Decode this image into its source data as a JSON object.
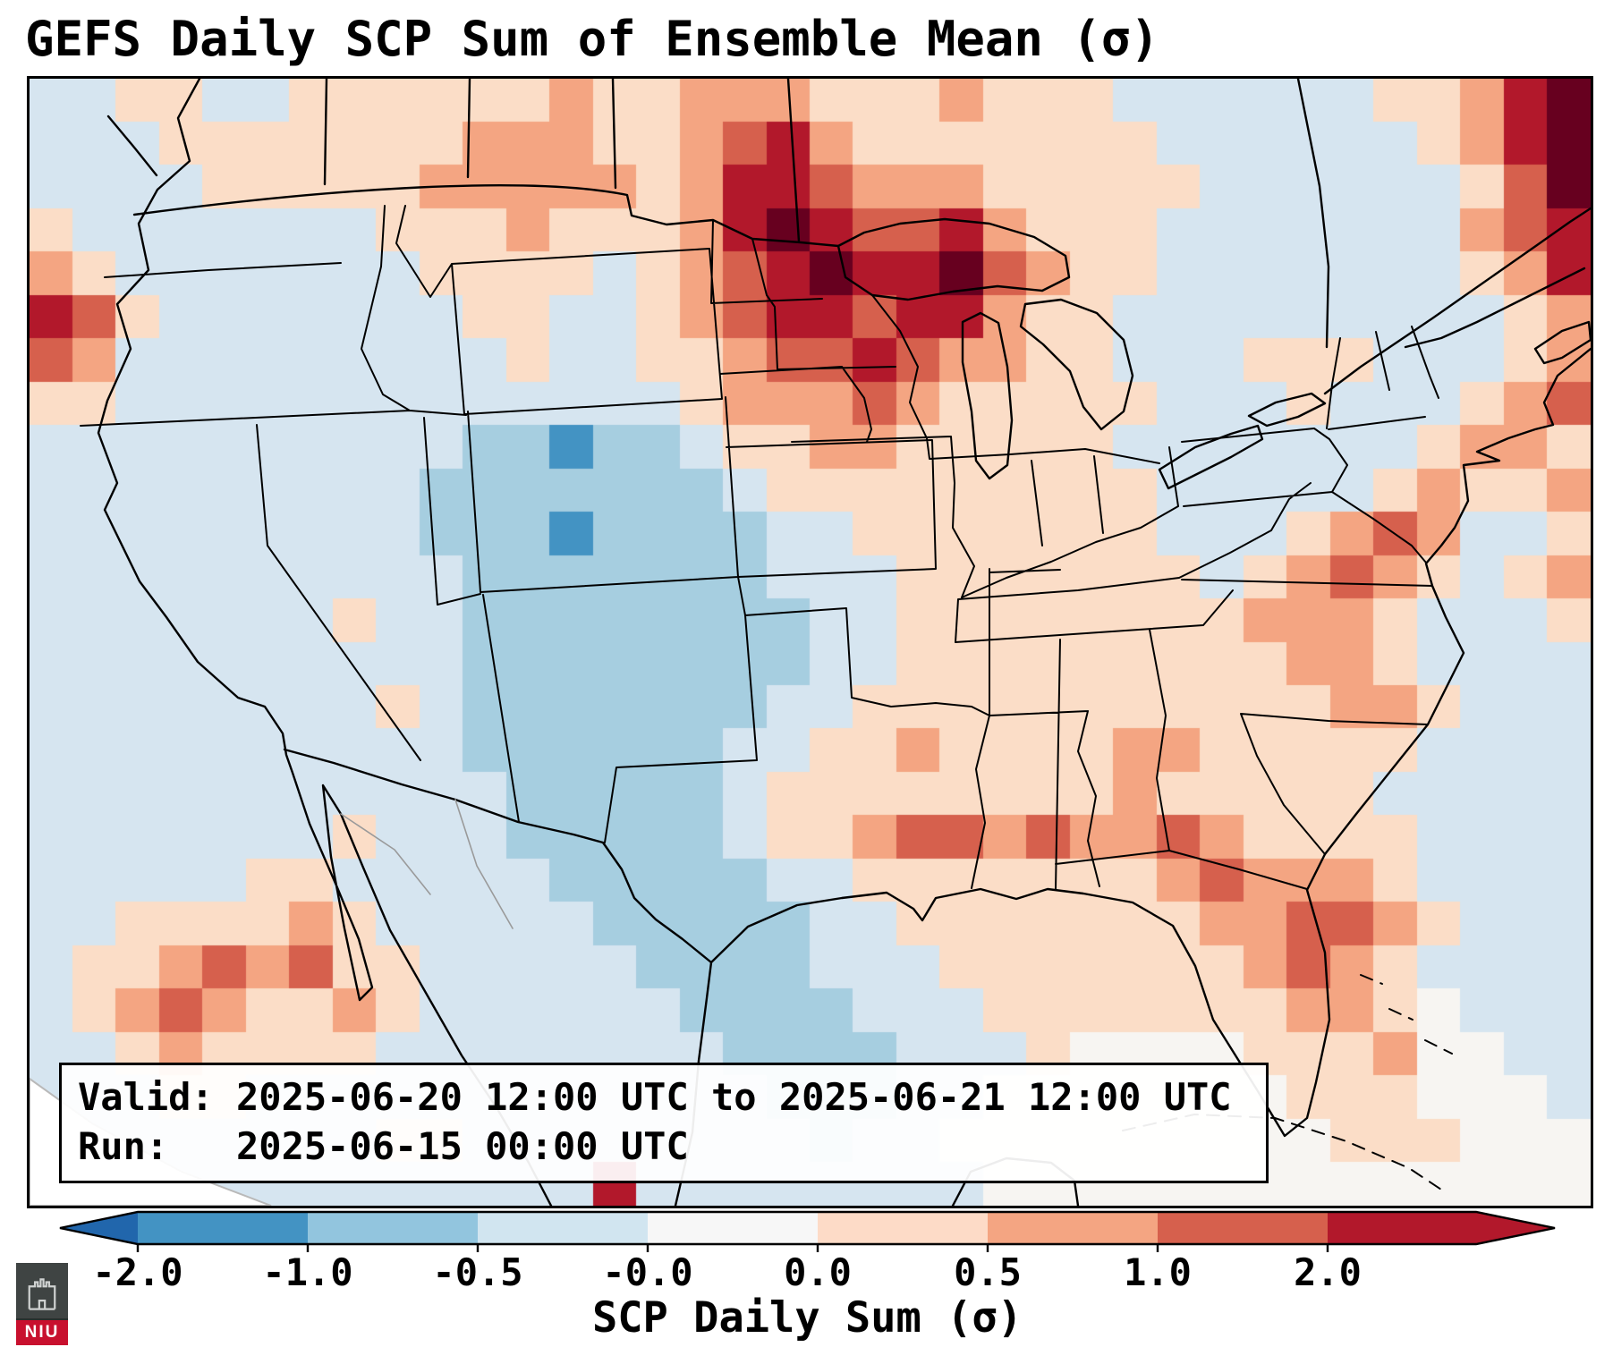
{
  "title": "GEFS Daily SCP Sum of Ensemble Mean (σ)",
  "info_box": {
    "valid_line": "Valid: 2025-06-20 12:00 UTC to 2025-06-21 12:00 UTC",
    "run_line": "Run:   2025-06-15 00:00 UTC"
  },
  "colorbar": {
    "label": "SCP Daily Sum (σ)",
    "ticks": [
      "-2.0",
      "-1.0",
      "-0.5",
      "-0.0",
      "0.0",
      "0.5",
      "1.0",
      "2.0"
    ],
    "segment_colors": [
      "#4393c3",
      "#92c5de",
      "#d1e5f0",
      "#f7f7f7",
      "#fddbc7",
      "#f4a582",
      "#d6604d"
    ],
    "extend_low_color": "#2166ac",
    "extend_high_color": "#b2182b"
  },
  "logo": {
    "text": "NIU"
  },
  "chart_data": {
    "type": "heatmap",
    "title": "GEFS Daily SCP Sum of Ensemble Mean (σ)",
    "units": "σ (standard deviations)",
    "colormap": "RdBu_r, diverging blue-white-red, extend both",
    "region": "Continental United States with surrounding Canada, Mexico, Gulf of Mexico and Atlantic",
    "valid": "2025-06-20 12:00 UTC to 2025-06-21 12:00 UTC",
    "run": "2025-06-15 00:00 UTC",
    "value_bins": {
      "0": "< -2.0",
      "1": "-2.0 to -1.0",
      "2": "-1.0 to -0.5",
      "3": "-0.5 to -0.0",
      "4": "near 0.0",
      "5": "0.0 to 0.5",
      "6": "0.5 to 1.0",
      "7": "1.0 to 2.0",
      "8": "> 2.0",
      "9": "> 2.0 (extreme core)"
    },
    "palette": {
      "0": "#2166ac",
      "1": "#4393c3",
      "2": "#a6cee0",
      "3": "#d6e5f0",
      "4": "#f7f5f2",
      "5": "#fbddc7",
      "6": "#f4a582",
      "7": "#d6604d",
      "8": "#b2182b",
      "9": "#67001f"
    },
    "grid_note": "26 rows x 36 cols, row 0 = north/top, each char is one grid cell bin",
    "rows": [
      "335533555555655666555655533333355689",
      "333555555566655678655555553333335689",
      "333355555666665688766655555333333579",
      "533333335556555689877865553333333678",
      "653333333555535678988976553333333568",
      "875333333355335678878865533333333356",
      "763333333335335567787665533355533356",
      "553333333333333566676555553335333567",
      "333333333322122355665555533333335665",
      "333333333222222235555555553333356556",
      "333333333222122223355555553335676335",
      "333333333322222223335555555356765356",
      "333333353322222222335555555566653335",
      "333333333322222222335555555556653333",
      "333333335322222223355555555555665333",
      "333333333322222233556555566555553333",
      "333333333332222235555555565555533333",
      "333333353332222235567767667655553333",
      "333335533333222223355555556766653333",
      "335555653333322222335555555667765333",
      "355676755333332222333555555567653333",
      "356765565333333222233355555556654333",
      "335655553333333322223335444455564433",
      "333553333333333332223344444445554443",
      "333333335533333333233444444444555444",
      "444333333333383333333344444444444444"
    ]
  }
}
